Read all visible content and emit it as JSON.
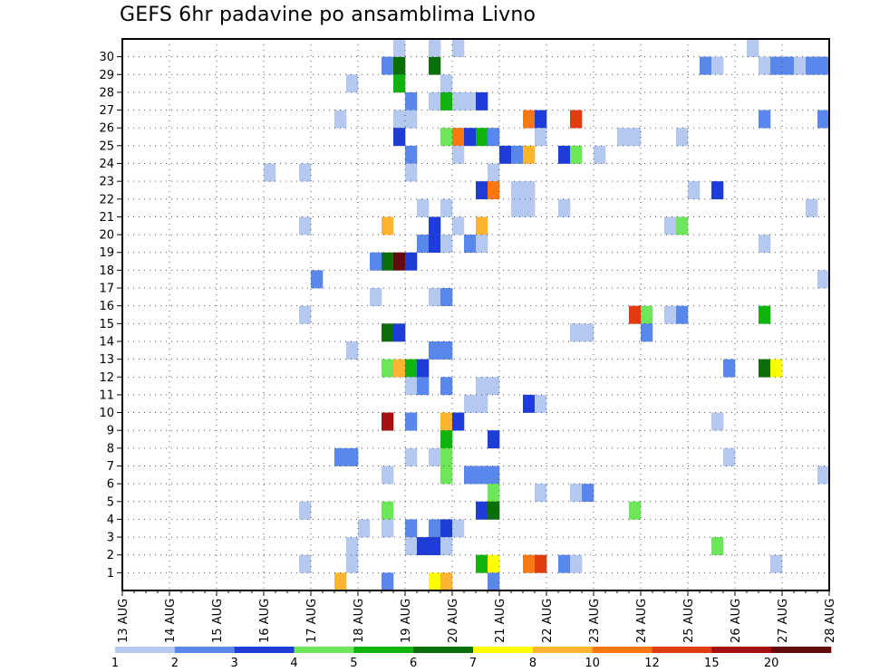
{
  "chart_data": {
    "type": "heatmap",
    "title": "GEFS 6hr padavine po ansamblima Livno",
    "x_tick_labels": [
      "13 AUG",
      "14 AUG",
      "15 AUG",
      "16 AUG",
      "17 AUG",
      "18 AUG",
      "19 AUG",
      "20 AUG",
      "21 AUG",
      "22 AUG",
      "23 AUG",
      "24 AUG",
      "25 AUG",
      "26 AUG",
      "27 AUG",
      "28 AUG"
    ],
    "y_tick_labels": [
      "1",
      "2",
      "3",
      "4",
      "5",
      "6",
      "7",
      "8",
      "9",
      "10",
      "11",
      "12",
      "13",
      "14",
      "15",
      "16",
      "17",
      "18",
      "19",
      "20",
      "21",
      "22",
      "23",
      "24",
      "25",
      "26",
      "27",
      "28",
      "29",
      "30"
    ],
    "time_step_hours": 6,
    "grid": true,
    "legend_position": "bottom",
    "colorbar": {
      "labels": [
        "1",
        "2",
        "3",
        "4",
        "5",
        "6",
        "7",
        "8",
        "10",
        "12",
        "15",
        "20"
      ],
      "colors": [
        "#b4c8f0",
        "#5a87eb",
        "#1e3cd7",
        "#6ee65a",
        "#0fb40f",
        "#0a6e0a",
        "#ffff00",
        "#ffb432",
        "#fa780f",
        "#e13c0f",
        "#a50f0f",
        "#640a0a"
      ]
    },
    "cells": [
      {
        "x": "18 AUG 12Z",
        "member": 29,
        "v": 2
      },
      {
        "x": "18 AUG 18Z",
        "member": 29,
        "v": 6
      },
      {
        "x": "19 AUG 12Z",
        "member": 29,
        "v": 6
      },
      {
        "x": "25 AUG 06Z",
        "member": 29,
        "v": 2
      },
      {
        "x": "25 AUG 12Z",
        "member": 29,
        "v": 1
      },
      {
        "x": "26 AUG 12Z",
        "member": 29,
        "v": 1
      },
      {
        "x": "26 AUG 18Z",
        "member": 29,
        "v": 2
      },
      {
        "x": "27 AUG 00Z",
        "member": 29,
        "v": 2
      },
      {
        "x": "27 AUG 06Z",
        "member": 29,
        "v": 1
      },
      {
        "x": "27 AUG 12Z",
        "member": 29,
        "v": 2
      },
      {
        "x": "27 AUG 18Z",
        "member": 29,
        "v": 2
      },
      {
        "x": "18 AUG 18Z",
        "member": 30,
        "v": 1
      },
      {
        "x": "19 AUG 12Z",
        "member": 30,
        "v": 1
      },
      {
        "x": "20 AUG 00Z",
        "member": 30,
        "v": 1
      },
      {
        "x": "26 AUG 06Z",
        "member": 30,
        "v": 1
      },
      {
        "x": "17 AUG 18Z",
        "member": 28,
        "v": 1
      },
      {
        "x": "18 AUG 18Z",
        "member": 28,
        "v": 5
      },
      {
        "x": "19 AUG 18Z",
        "member": 28,
        "v": 1
      },
      {
        "x": "19 AUG 00Z",
        "member": 27,
        "v": 2
      },
      {
        "x": "19 AUG 12Z",
        "member": 27,
        "v": 1
      },
      {
        "x": "19 AUG 18Z",
        "member": 27,
        "v": 5
      },
      {
        "x": "20 AUG 00Z",
        "member": 27,
        "v": 1
      },
      {
        "x": "20 AUG 06Z",
        "member": 27,
        "v": 1
      },
      {
        "x": "20 AUG 12Z",
        "member": 27,
        "v": 3
      },
      {
        "x": "17 AUG 12Z",
        "member": 26,
        "v": 1
      },
      {
        "x": "18 AUG 18Z",
        "member": 26,
        "v": 1
      },
      {
        "x": "19 AUG 00Z",
        "member": 26,
        "v": 1
      },
      {
        "x": "21 AUG 12Z",
        "member": 26,
        "v": 11
      },
      {
        "x": "21 AUG 18Z",
        "member": 26,
        "v": 3
      },
      {
        "x": "22 AUG 12Z",
        "member": 26,
        "v": 12
      },
      {
        "x": "26 AUG 12Z",
        "member": 26,
        "v": 2
      },
      {
        "x": "27 AUG 18Z",
        "member": 26,
        "v": 2
      },
      {
        "x": "18 AUG 18Z",
        "member": 25,
        "v": 3
      },
      {
        "x": "19 AUG 18Z",
        "member": 25,
        "v": 4
      },
      {
        "x": "20 AUG 00Z",
        "member": 25,
        "v": 10
      },
      {
        "x": "20 AUG 06Z",
        "member": 25,
        "v": 3
      },
      {
        "x": "20 AUG 12Z",
        "member": 25,
        "v": 5
      },
      {
        "x": "20 AUG 18Z",
        "member": 25,
        "v": 2
      },
      {
        "x": "21 AUG 18Z",
        "member": 25,
        "v": 1
      },
      {
        "x": "23 AUG 12Z",
        "member": 25,
        "v": 1
      },
      {
        "x": "23 AUG 18Z",
        "member": 25,
        "v": 1
      },
      {
        "x": "24 AUG 18Z",
        "member": 25,
        "v": 1
      },
      {
        "x": "19 AUG 00Z",
        "member": 24,
        "v": 2
      },
      {
        "x": "20 AUG 00Z",
        "member": 24,
        "v": 1
      },
      {
        "x": "21 AUG 00Z",
        "member": 24,
        "v": 3
      },
      {
        "x": "21 AUG 06Z",
        "member": 24,
        "v": 2
      },
      {
        "x": "21 AUG 12Z",
        "member": 24,
        "v": 8
      },
      {
        "x": "22 AUG 06Z",
        "member": 24,
        "v": 3
      },
      {
        "x": "22 AUG 12Z",
        "member": 24,
        "v": 4
      },
      {
        "x": "23 AUG 00Z",
        "member": 24,
        "v": 1
      },
      {
        "x": "16 AUG 00Z",
        "member": 23,
        "v": 1
      },
      {
        "x": "16 AUG 18Z",
        "member": 23,
        "v": 1
      },
      {
        "x": "19 AUG 00Z",
        "member": 23,
        "v": 1
      },
      {
        "x": "20 AUG 18Z",
        "member": 23,
        "v": 1
      },
      {
        "x": "20 AUG 12Z",
        "member": 22,
        "v": 3
      },
      {
        "x": "20 AUG 18Z",
        "member": 22,
        "v": 10
      },
      {
        "x": "21 AUG 06Z",
        "member": 22,
        "v": 1
      },
      {
        "x": "21 AUG 12Z",
        "member": 22,
        "v": 1
      },
      {
        "x": "25 AUG 00Z",
        "member": 22,
        "v": 1
      },
      {
        "x": "25 AUG 12Z",
        "member": 22,
        "v": 3
      },
      {
        "x": "19 AUG 06Z",
        "member": 21,
        "v": 1
      },
      {
        "x": "19 AUG 18Z",
        "member": 21,
        "v": 1
      },
      {
        "x": "21 AUG 06Z",
        "member": 21,
        "v": 1
      },
      {
        "x": "21 AUG 12Z",
        "member": 21,
        "v": 1
      },
      {
        "x": "22 AUG 06Z",
        "member": 21,
        "v": 1
      },
      {
        "x": "27 AUG 12Z",
        "member": 21,
        "v": 1
      },
      {
        "x": "16 AUG 18Z",
        "member": 20,
        "v": 1
      },
      {
        "x": "18 AUG 12Z",
        "member": 20,
        "v": 8
      },
      {
        "x": "19 AUG 12Z",
        "member": 20,
        "v": 3
      },
      {
        "x": "20 AUG 00Z",
        "member": 20,
        "v": 1
      },
      {
        "x": "20 AUG 12Z",
        "member": 20,
        "v": 8
      },
      {
        "x": "24 AUG 12Z",
        "member": 20,
        "v": 1
      },
      {
        "x": "24 AUG 18Z",
        "member": 20,
        "v": 4
      },
      {
        "x": "19 AUG 06Z",
        "member": 19,
        "v": 2
      },
      {
        "x": "19 AUG 12Z",
        "member": 19,
        "v": 3
      },
      {
        "x": "19 AUG 18Z",
        "member": 19,
        "v": 1
      },
      {
        "x": "20 AUG 06Z",
        "member": 19,
        "v": 2
      },
      {
        "x": "20 AUG 12Z",
        "member": 19,
        "v": 1
      },
      {
        "x": "26 AUG 12Z",
        "member": 19,
        "v": 1
      },
      {
        "x": "18 AUG 06Z",
        "member": 18,
        "v": 2
      },
      {
        "x": "18 AUG 12Z",
        "member": 18,
        "v": 6
      },
      {
        "x": "18 AUG 18Z",
        "member": 18,
        "v": 20
      },
      {
        "x": "19 AUG 00Z",
        "member": 18,
        "v": 3
      },
      {
        "x": "17 AUG 00Z",
        "member": 17,
        "v": 2
      },
      {
        "x": "27 AUG 18Z",
        "member": 17,
        "v": 1
      },
      {
        "x": "18 AUG 06Z",
        "member": 16,
        "v": 1
      },
      {
        "x": "19 AUG 12Z",
        "member": 16,
        "v": 1
      },
      {
        "x": "19 AUG 18Z",
        "member": 16,
        "v": 2
      },
      {
        "x": "16 AUG 18Z",
        "member": 15,
        "v": 1
      },
      {
        "x": "23 AUG 18Z",
        "member": 15,
        "v": 12
      },
      {
        "x": "24 AUG 00Z",
        "member": 15,
        "v": 4
      },
      {
        "x": "24 AUG 12Z",
        "member": 15,
        "v": 1
      },
      {
        "x": "24 AUG 18Z",
        "member": 15,
        "v": 2
      },
      {
        "x": "26 AUG 12Z",
        "member": 15,
        "v": 5
      },
      {
        "x": "18 AUG 12Z",
        "member": 14,
        "v": 6
      },
      {
        "x": "18 AUG 18Z",
        "member": 14,
        "v": 3
      },
      {
        "x": "22 AUG 12Z",
        "member": 14,
        "v": 1
      },
      {
        "x": "22 AUG 18Z",
        "member": 14,
        "v": 1
      },
      {
        "x": "24 AUG 00Z",
        "member": 14,
        "v": 2
      },
      {
        "x": "17 AUG 18Z",
        "member": 13,
        "v": 1
      },
      {
        "x": "19 AUG 12Z",
        "member": 13,
        "v": 2
      },
      {
        "x": "19 AUG 18Z",
        "member": 13,
        "v": 2
      },
      {
        "x": "18 AUG 12Z",
        "member": 12,
        "v": 4
      },
      {
        "x": "18 AUG 18Z",
        "member": 12,
        "v": 8
      },
      {
        "x": "19 AUG 00Z",
        "member": 12,
        "v": 5
      },
      {
        "x": "19 AUG 06Z",
        "member": 12,
        "v": 3
      },
      {
        "x": "25 AUG 18Z",
        "member": 12,
        "v": 2
      },
      {
        "x": "26 AUG 12Z",
        "member": 12,
        "v": 6
      },
      {
        "x": "26 AUG 18Z",
        "member": 12,
        "v": 7
      },
      {
        "x": "19 AUG 00Z",
        "member": 11,
        "v": 1
      },
      {
        "x": "19 AUG 06Z",
        "member": 11,
        "v": 2
      },
      {
        "x": "19 AUG 18Z",
        "member": 11,
        "v": 2
      },
      {
        "x": "20 AUG 12Z",
        "member": 11,
        "v": 1
      },
      {
        "x": "20 AUG 18Z",
        "member": 11,
        "v": 1
      },
      {
        "x": "20 AUG 06Z",
        "member": 10,
        "v": 1
      },
      {
        "x": "20 AUG 12Z",
        "member": 10,
        "v": 1
      },
      {
        "x": "21 AUG 12Z",
        "member": 10,
        "v": 3
      },
      {
        "x": "21 AUG 18Z",
        "member": 10,
        "v": 1
      },
      {
        "x": "18 AUG 12Z",
        "member": 9,
        "v": 15
      },
      {
        "x": "19 AUG 00Z",
        "member": 9,
        "v": 2
      },
      {
        "x": "19 AUG 18Z",
        "member": 9,
        "v": 8
      },
      {
        "x": "20 AUG 00Z",
        "member": 9,
        "v": 3
      },
      {
        "x": "25 AUG 12Z",
        "member": 9,
        "v": 1
      },
      {
        "x": "19 AUG 18Z",
        "member": 8,
        "v": 5
      },
      {
        "x": "20 AUG 18Z",
        "member": 8,
        "v": 3
      },
      {
        "x": "17 AUG 12Z",
        "member": 7,
        "v": 2
      },
      {
        "x": "17 AUG 18Z",
        "member": 7,
        "v": 2
      },
      {
        "x": "19 AUG 00Z",
        "member": 7,
        "v": 1
      },
      {
        "x": "19 AUG 12Z",
        "member": 7,
        "v": 1
      },
      {
        "x": "19 AUG 18Z",
        "member": 7,
        "v": 4
      },
      {
        "x": "25 AUG 18Z",
        "member": 7,
        "v": 1
      },
      {
        "x": "18 AUG 12Z",
        "member": 6,
        "v": 1
      },
      {
        "x": "19 AUG 18Z",
        "member": 6,
        "v": 4
      },
      {
        "x": "20 AUG 06Z",
        "member": 6,
        "v": 2
      },
      {
        "x": "20 AUG 12Z",
        "member": 6,
        "v": 2
      },
      {
        "x": "20 AUG 18Z",
        "member": 6,
        "v": 2
      },
      {
        "x": "27 AUG 18Z",
        "member": 6,
        "v": 1
      },
      {
        "x": "20 AUG 18Z",
        "member": 5,
        "v": 4
      },
      {
        "x": "21 AUG 18Z",
        "member": 5,
        "v": 1
      },
      {
        "x": "22 AUG 12Z",
        "member": 5,
        "v": 1
      },
      {
        "x": "22 AUG 18Z",
        "member": 5,
        "v": 2
      },
      {
        "x": "16 AUG 18Z",
        "member": 4,
        "v": 1
      },
      {
        "x": "18 AUG 12Z",
        "member": 4,
        "v": 4
      },
      {
        "x": "20 AUG 12Z",
        "member": 4,
        "v": 3
      },
      {
        "x": "20 AUG 18Z",
        "member": 4,
        "v": 6
      },
      {
        "x": "23 AUG 18Z",
        "member": 4,
        "v": 4
      },
      {
        "x": "18 AUG 00Z",
        "member": 3,
        "v": 1
      },
      {
        "x": "18 AUG 12Z",
        "member": 3,
        "v": 1
      },
      {
        "x": "19 AUG 00Z",
        "member": 3,
        "v": 2
      },
      {
        "x": "19 AUG 12Z",
        "member": 3,
        "v": 2
      },
      {
        "x": "19 AUG 18Z",
        "member": 3,
        "v": 3
      },
      {
        "x": "20 AUG 00Z",
        "member": 3,
        "v": 1
      },
      {
        "x": "17 AUG 18Z",
        "member": 2,
        "v": 1
      },
      {
        "x": "19 AUG 00Z",
        "member": 2,
        "v": 1
      },
      {
        "x": "19 AUG 06Z",
        "member": 2,
        "v": 3
      },
      {
        "x": "19 AUG 12Z",
        "member": 2,
        "v": 3
      },
      {
        "x": "19 AUG 18Z",
        "member": 2,
        "v": 1
      },
      {
        "x": "25 AUG 12Z",
        "member": 2,
        "v": 4
      },
      {
        "x": "16 AUG 18Z",
        "member": 1,
        "v": 1
      },
      {
        "x": "17 AUG 18Z",
        "member": 1,
        "v": 1
      },
      {
        "x": "20 AUG 12Z",
        "member": 1,
        "v": 5
      },
      {
        "x": "20 AUG 18Z",
        "member": 1,
        "v": 7
      },
      {
        "x": "21 AUG 12Z",
        "member": 1,
        "v": 10
      },
      {
        "x": "21 AUG 18Z",
        "member": 1,
        "v": 12
      },
      {
        "x": "22 AUG 06Z",
        "member": 1,
        "v": 2
      },
      {
        "x": "22 AUG 12Z",
        "member": 1,
        "v": 1
      },
      {
        "x": "26 AUG 18Z",
        "member": 1,
        "v": 1
      },
      {
        "x": "17 AUG 12Z",
        "member": 0,
        "v": 8
      },
      {
        "x": "18 AUG 12Z",
        "member": 0,
        "v": 2
      },
      {
        "x": "19 AUG 12Z",
        "member": 0,
        "v": 7
      },
      {
        "x": "19 AUG 18Z",
        "member": 0,
        "v": 8
      },
      {
        "x": "20 AUG 18Z",
        "member": 0,
        "v": 2
      }
    ]
  }
}
